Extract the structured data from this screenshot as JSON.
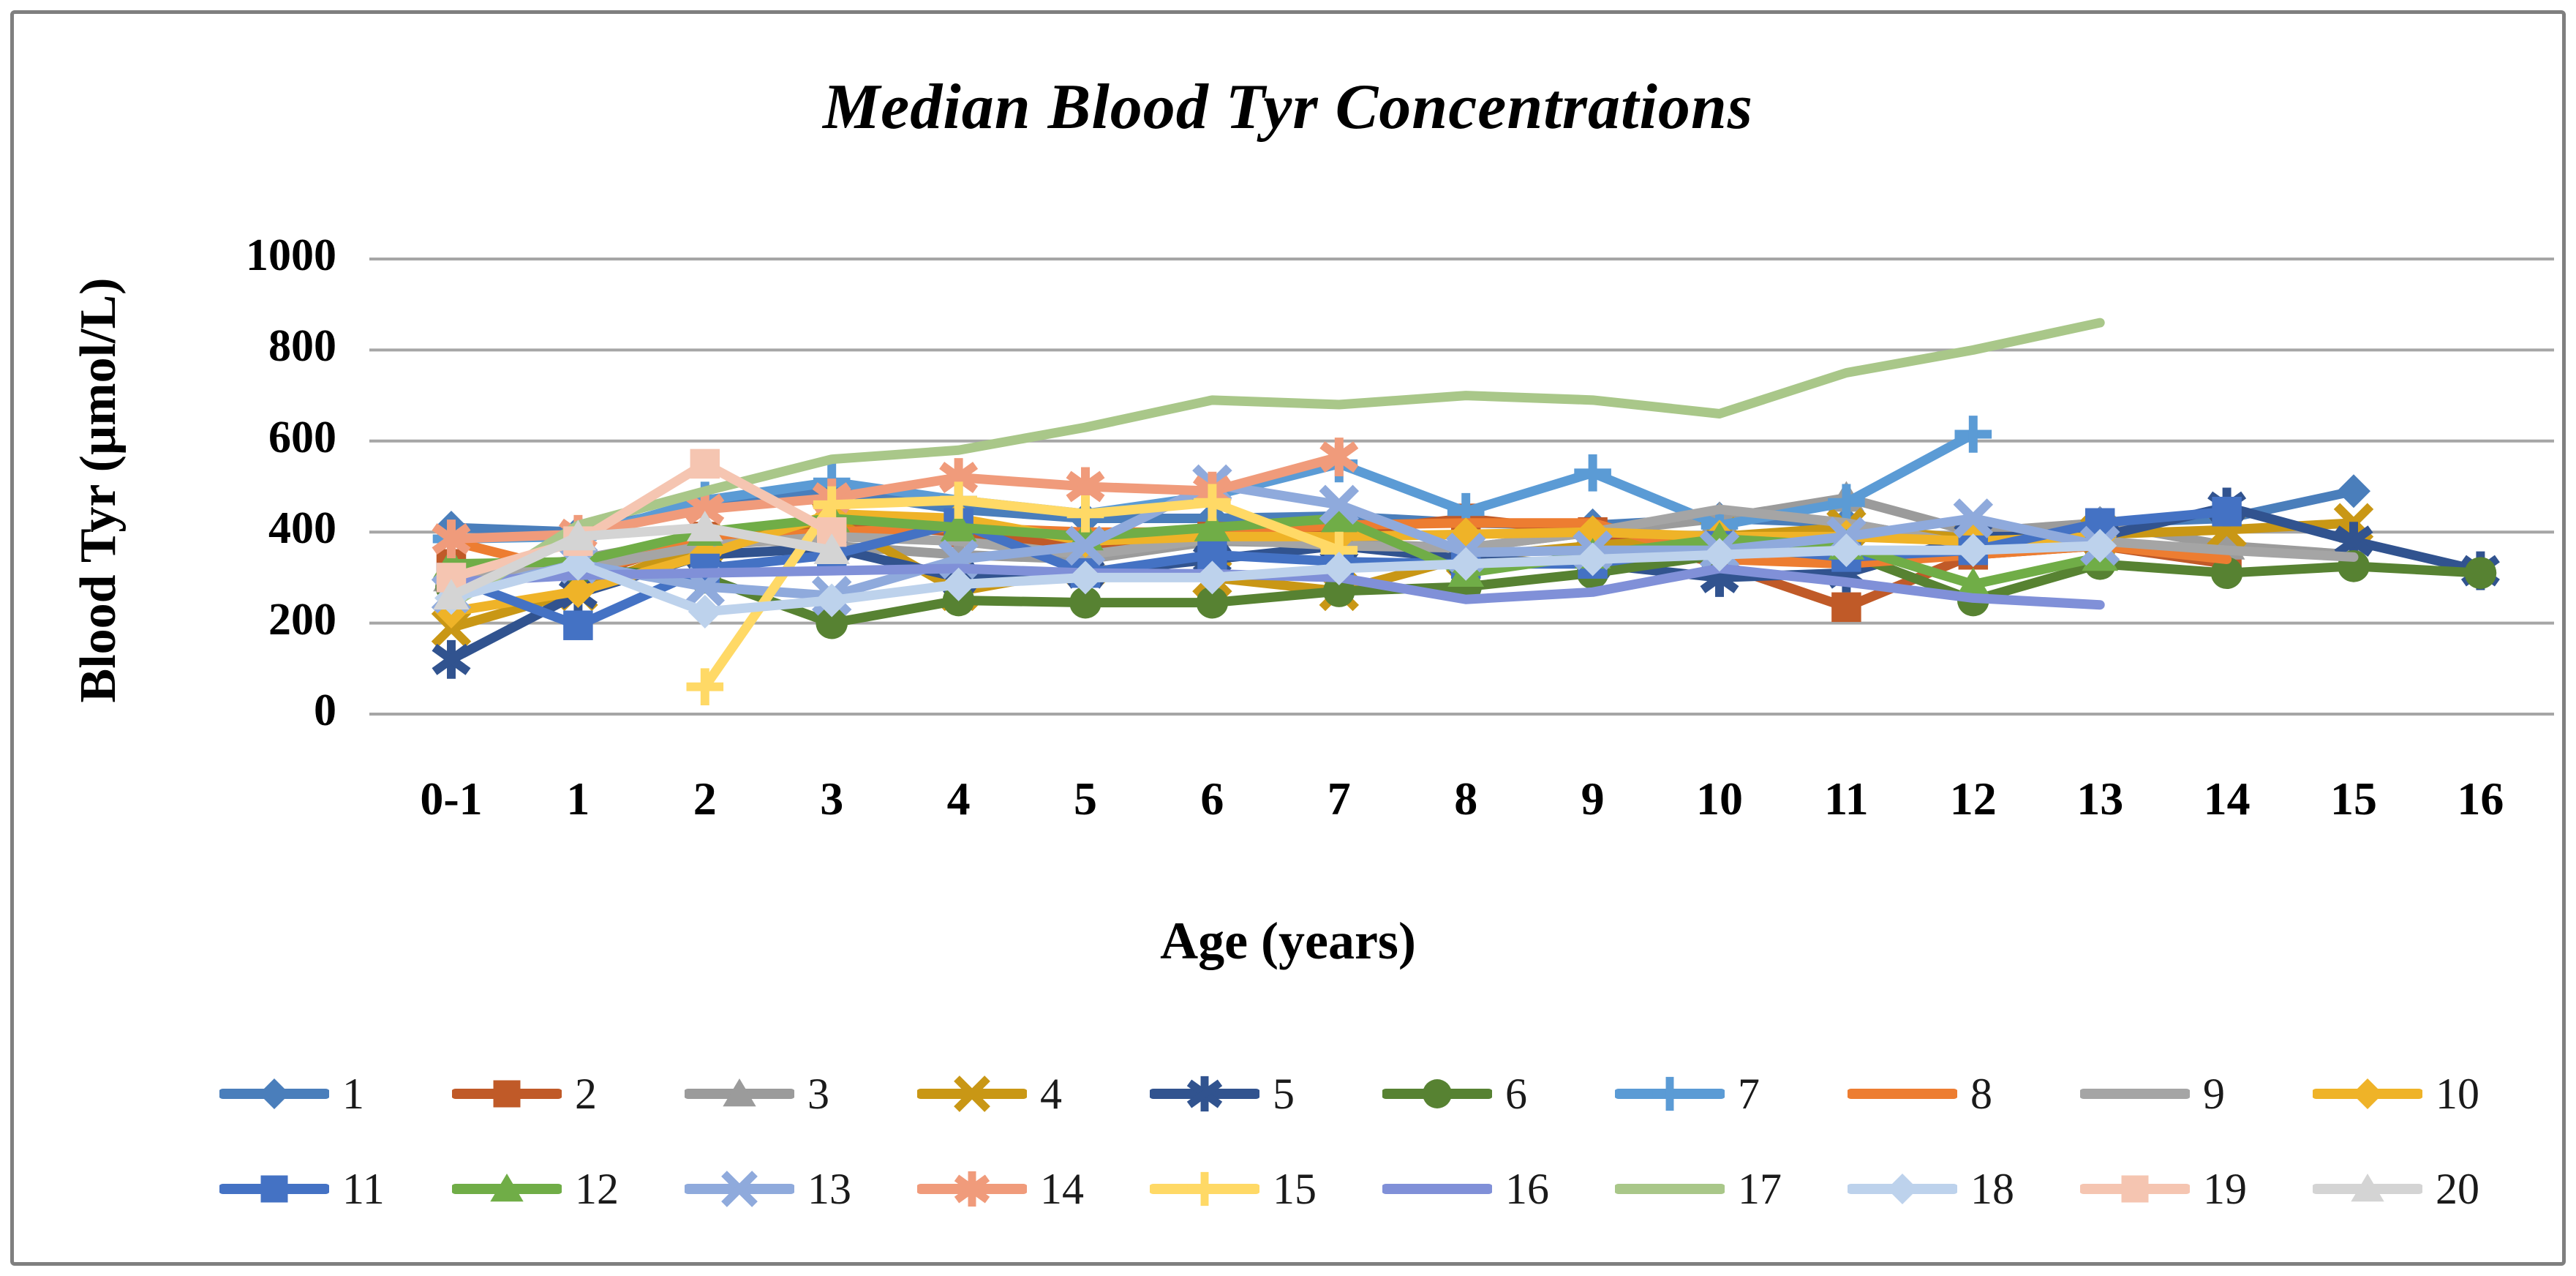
{
  "figure": {
    "title": "Median Blood Tyr Concentrations",
    "xlabel": "Age (years)",
    "ylabel": "Blood Tyr (µmol/L)"
  },
  "chart_data": {
    "type": "line",
    "title": "Median Blood Tyr Concentrations",
    "xlabel": "Age (years)",
    "ylabel": "Blood Tyr (µmol/L)",
    "ylim": [
      0,
      1000
    ],
    "ytick_step": 200,
    "grid": true,
    "legend_position": "bottom",
    "categories": [
      "0-1",
      "1",
      "2",
      "3",
      "4",
      "5",
      "6",
      "7",
      "8",
      "9",
      "10",
      "11",
      "12",
      "13",
      "14",
      "15",
      "16"
    ],
    "series": [
      {
        "name": "1",
        "color": "#4A7EBB",
        "marker": "diamond",
        "values": [
          410,
          400,
          460,
          490,
          450,
          430,
          430,
          435,
          420,
          415,
          430,
          420,
          370,
          420,
          430,
          490,
          null
        ]
      },
      {
        "name": "2",
        "color": "#C05A28",
        "marker": "square",
        "values": [
          330,
          300,
          390,
          420,
          400,
          370,
          390,
          400,
          430,
          400,
          330,
          235,
          350,
          370,
          330,
          null,
          null
        ]
      },
      {
        "name": "3",
        "color": "#9B9B9B",
        "marker": "triangle",
        "values": [
          300,
          340,
          390,
          370,
          350,
          340,
          380,
          375,
          365,
          400,
          430,
          475,
          400,
          420,
          370,
          350,
          null
        ]
      },
      {
        "name": "4",
        "color": "#C99715",
        "marker": "x",
        "values": [
          190,
          270,
          375,
          430,
          270,
          320,
          300,
          270,
          345,
          370,
          390,
          410,
          385,
          395,
          405,
          420,
          null
        ]
      },
      {
        "name": "5",
        "color": "#31538F",
        "marker": "asterisk",
        "values": [
          120,
          265,
          350,
          365,
          300,
          310,
          340,
          370,
          340,
          330,
          300,
          310,
          390,
          390,
          455,
          380,
          315
        ]
      },
      {
        "name": "6",
        "color": "#578232",
        "marker": "circle",
        "values": [
          280,
          320,
          300,
          200,
          250,
          245,
          245,
          270,
          280,
          310,
          350,
          355,
          250,
          330,
          310,
          325,
          310
        ]
      },
      {
        "name": "7",
        "color": "#5B9BD5",
        "marker": "plus",
        "values": [
          385,
          390,
          470,
          510,
          470,
          440,
          480,
          550,
          445,
          530,
          415,
          465,
          615,
          null,
          null,
          null,
          null
        ]
      },
      {
        "name": "8",
        "color": "#ED7D31",
        "marker": "none",
        "values": [
          380,
          310,
          380,
          400,
          410,
          400,
          400,
          415,
          420,
          420,
          340,
          330,
          350,
          370,
          340,
          null,
          null
        ]
      },
      {
        "name": "9",
        "color": "#A5A5A5",
        "marker": "none",
        "values": [
          310,
          320,
          370,
          390,
          380,
          350,
          385,
          370,
          365,
          400,
          450,
          420,
          370,
          380,
          360,
          345,
          null
        ]
      },
      {
        "name": "10",
        "color": "#EFB328",
        "marker": "diamond",
        "values": [
          225,
          270,
          350,
          440,
          430,
          380,
          390,
          390,
          395,
          400,
          390,
          390,
          380,
          390,
          null,
          null,
          null
        ]
      },
      {
        "name": "11",
        "color": "#4472C4",
        "marker": "square",
        "values": [
          300,
          195,
          320,
          350,
          420,
          310,
          350,
          335,
          330,
          330,
          370,
          345,
          360,
          420,
          445,
          null,
          null
        ]
      },
      {
        "name": "12",
        "color": "#70AD47",
        "marker": "triangle",
        "values": [
          330,
          335,
          400,
          430,
          410,
          390,
          410,
          430,
          310,
          350,
          385,
          370,
          285,
          345,
          null,
          null,
          null
        ]
      },
      {
        "name": "13",
        "color": "#8FAADC",
        "marker": "x",
        "values": [
          265,
          330,
          280,
          260,
          340,
          370,
          505,
          460,
          355,
          360,
          360,
          390,
          430,
          370,
          null,
          null,
          null
        ]
      },
      {
        "name": "14",
        "color": "#F09B7B",
        "marker": "asterisk",
        "values": [
          385,
          395,
          450,
          475,
          520,
          500,
          490,
          565,
          null,
          null,
          null,
          null,
          null,
          null,
          null,
          null,
          null
        ]
      },
      {
        "name": "15",
        "color": "#FFD966",
        "marker": "plus",
        "values": [
          null,
          null,
          60,
          460,
          470,
          440,
          465,
          360,
          null,
          null,
          null,
          null,
          null,
          null,
          null,
          null,
          null
        ]
      },
      {
        "name": "16",
        "color": "#8090D8",
        "marker": "none",
        "values": [
          290,
          305,
          310,
          315,
          320,
          310,
          308,
          300,
          252,
          268,
          320,
          290,
          255,
          240,
          null,
          null,
          null
        ]
      },
      {
        "name": "17",
        "color": "#A9C789",
        "marker": "none",
        "values": [
          240,
          415,
          490,
          560,
          580,
          630,
          690,
          680,
          700,
          690,
          660,
          750,
          800,
          860,
          null,
          null,
          null
        ]
      },
      {
        "name": "18",
        "color": "#BDD2EC",
        "marker": "diamond",
        "values": [
          255,
          330,
          225,
          250,
          285,
          300,
          300,
          320,
          330,
          340,
          350,
          360,
          360,
          370,
          null,
          null,
          null
        ]
      },
      {
        "name": "19",
        "color": "#F5C5B1",
        "marker": "square",
        "values": [
          300,
          380,
          550,
          400,
          null,
          null,
          null,
          null,
          null,
          null,
          null,
          null,
          null,
          null,
          null,
          null,
          null
        ]
      },
      {
        "name": "20",
        "color": "#D4D4D4",
        "marker": "triangle",
        "values": [
          260,
          390,
          410,
          360,
          null,
          null,
          null,
          null,
          null,
          null,
          null,
          null,
          null,
          null,
          null,
          null,
          null
        ]
      }
    ]
  }
}
